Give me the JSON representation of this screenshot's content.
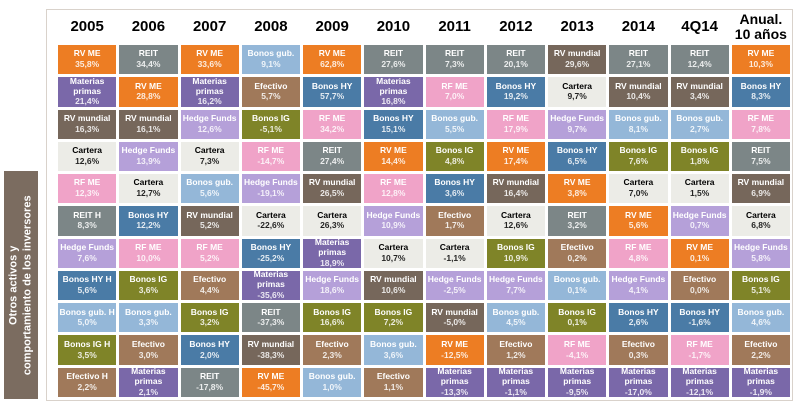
{
  "sidebar": {
    "label": "Otros activos y\ncomportamiento de los inversores",
    "bg": "#7b6c60"
  },
  "palette": {
    "RV ME": {
      "bg": "#ed7d23",
      "fg": "#ffffff"
    },
    "Materias primas": {
      "bg": "#7a68a9",
      "fg": "#ffffff"
    },
    "RV mundial": {
      "bg": "#76675b",
      "fg": "#ffffff"
    },
    "Cartera": {
      "bg": "#ececе7",
      "fg": "#000000"
    },
    "RF ME": {
      "bg": "#f0a3c8",
      "fg": "#ffffff"
    },
    "REIT": {
      "bg": "#7c8687",
      "fg": "#ffffff"
    },
    "Hedge Funds": {
      "bg": "#b5a0d9",
      "fg": "#ffffff"
    },
    "Bonos HY": {
      "bg": "#4a7ba6",
      "fg": "#ffffff"
    },
    "Bonos gub.": {
      "bg": "#94b7d8",
      "fg": "#ffffff"
    },
    "Bonos IG": {
      "bg": "#7f8428",
      "fg": "#ffffff"
    },
    "Efectivo": {
      "bg": "#a0795a",
      "fg": "#ffffff"
    }
  },
  "chart_data": {
    "type": "table",
    "layout": "return-quilt; columns sorted descending by annual return; values use Spanish decimal commas",
    "columns": [
      {
        "header": "2005",
        "cells": [
          {
            "label": "RV ME",
            "asset": "RV ME",
            "value": "35,8%"
          },
          {
            "label": "Materias\nprimas",
            "asset": "Materias primas",
            "value": "21,4%"
          },
          {
            "label": "RV mundial",
            "asset": "RV mundial",
            "value": "16,3%"
          },
          {
            "label": "Cartera",
            "asset": "Cartera",
            "value": "12,6%"
          },
          {
            "label": "RF ME",
            "asset": "RF ME",
            "value": "12,3%"
          },
          {
            "label": "REIT H",
            "asset": "REIT",
            "value": "8,3%"
          },
          {
            "label": "Hedge Funds",
            "asset": "Hedge Funds",
            "value": "7,6%"
          },
          {
            "label": "Bonos HY H",
            "asset": "Bonos HY",
            "value": "5,6%"
          },
          {
            "label": "Bonos gub. H",
            "asset": "Bonos gub.",
            "value": "5,0%"
          },
          {
            "label": "Bonos IG H",
            "asset": "Bonos IG",
            "value": "3,5%"
          },
          {
            "label": "Efectivo H",
            "asset": "Efectivo",
            "value": "2,2%"
          }
        ]
      },
      {
        "header": "2006",
        "cells": [
          {
            "label": "REIT",
            "asset": "REIT",
            "value": "34,4%"
          },
          {
            "label": "RV ME",
            "asset": "RV ME",
            "value": "28,8%"
          },
          {
            "label": "RV mundial",
            "asset": "RV mundial",
            "value": "16,1%"
          },
          {
            "label": "Hedge Funds",
            "asset": "Hedge Funds",
            "value": "13,9%"
          },
          {
            "label": "Cartera",
            "asset": "Cartera",
            "value": "12,7%"
          },
          {
            "label": "Bonos HY",
            "asset": "Bonos HY",
            "value": "12,2%"
          },
          {
            "label": "RF ME",
            "asset": "RF ME",
            "value": "10,0%"
          },
          {
            "label": "Bonos IG",
            "asset": "Bonos IG",
            "value": "3,6%"
          },
          {
            "label": "Bonos gub.",
            "asset": "Bonos gub.",
            "value": "3,3%"
          },
          {
            "label": "Efectivo",
            "asset": "Efectivo",
            "value": "3,0%"
          },
          {
            "label": "Materias\nprimas",
            "asset": "Materias primas",
            "value": "2,1%"
          }
        ]
      },
      {
        "header": "2007",
        "cells": [
          {
            "label": "RV ME",
            "asset": "RV ME",
            "value": "33,6%"
          },
          {
            "label": "Materias\nprimas",
            "asset": "Materias primas",
            "value": "16,2%"
          },
          {
            "label": "Hedge Funds",
            "asset": "Hedge Funds",
            "value": "12,6%"
          },
          {
            "label": "Cartera",
            "asset": "Cartera",
            "value": "7,3%"
          },
          {
            "label": "Bonos gub.",
            "asset": "Bonos gub.",
            "value": "5,6%"
          },
          {
            "label": "RV mundial",
            "asset": "RV mundial",
            "value": "5,2%"
          },
          {
            "label": "RF ME",
            "asset": "RF ME",
            "value": "5,2%"
          },
          {
            "label": "Efectivo",
            "asset": "Efectivo",
            "value": "4,4%"
          },
          {
            "label": "Bonos IG",
            "asset": "Bonos IG",
            "value": "3,2%"
          },
          {
            "label": "Bonos HY",
            "asset": "Bonos HY",
            "value": "2,0%"
          },
          {
            "label": "REIT",
            "asset": "REIT",
            "value": "-17,8%"
          }
        ]
      },
      {
        "header": "2008",
        "cells": [
          {
            "label": "Bonos gub.",
            "asset": "Bonos gub.",
            "value": "9,1%"
          },
          {
            "label": "Efectivo",
            "asset": "Efectivo",
            "value": "5,7%"
          },
          {
            "label": "Bonos IG",
            "asset": "Bonos IG",
            "value": "-5,1%"
          },
          {
            "label": "RF ME",
            "asset": "RF ME",
            "value": "-14,7%"
          },
          {
            "label": "Hedge Funds",
            "asset": "Hedge Funds",
            "value": "-19,1%"
          },
          {
            "label": "Cartera",
            "asset": "Cartera",
            "value": "-22,6%"
          },
          {
            "label": "Bonos HY",
            "asset": "Bonos HY",
            "value": "-25,2%"
          },
          {
            "label": "Materias\nprimas",
            "asset": "Materias primas",
            "value": "-35,6%"
          },
          {
            "label": "REIT",
            "asset": "REIT",
            "value": "-37,3%"
          },
          {
            "label": "RV mundial",
            "asset": "RV mundial",
            "value": "-38,3%"
          },
          {
            "label": "RV ME",
            "asset": "RV ME",
            "value": "-45,7%"
          }
        ]
      },
      {
        "header": "2009",
        "cells": [
          {
            "label": "RV ME",
            "asset": "RV ME",
            "value": "62,8%"
          },
          {
            "label": "Bonos HY",
            "asset": "Bonos HY",
            "value": "57,7%"
          },
          {
            "label": "RF ME",
            "asset": "RF ME",
            "value": "34,2%"
          },
          {
            "label": "REIT",
            "asset": "REIT",
            "value": "27,4%"
          },
          {
            "label": "RV mundial",
            "asset": "RV mundial",
            "value": "26,5%"
          },
          {
            "label": "Cartera",
            "asset": "Cartera",
            "value": "26,3%"
          },
          {
            "label": "Materias\nprimas",
            "asset": "Materias primas",
            "value": "18,9%"
          },
          {
            "label": "Hedge Funds",
            "asset": "Hedge Funds",
            "value": "18,6%"
          },
          {
            "label": "Bonos IG",
            "asset": "Bonos IG",
            "value": "16,6%"
          },
          {
            "label": "Efectivo",
            "asset": "Efectivo",
            "value": "2,3%"
          },
          {
            "label": "Bonos gub.",
            "asset": "Bonos gub.",
            "value": "1,0%"
          }
        ]
      },
      {
        "header": "2010",
        "cells": [
          {
            "label": "REIT",
            "asset": "REIT",
            "value": "27,6%"
          },
          {
            "label": "Materias\nprimas",
            "asset": "Materias primas",
            "value": "16,8%"
          },
          {
            "label": "Bonos HY",
            "asset": "Bonos HY",
            "value": "15,1%"
          },
          {
            "label": "RV ME",
            "asset": "RV ME",
            "value": "14,4%"
          },
          {
            "label": "RF ME",
            "asset": "RF ME",
            "value": "12,8%"
          },
          {
            "label": "Hedge Funds",
            "asset": "Hedge Funds",
            "value": "10,9%"
          },
          {
            "label": "Cartera",
            "asset": "Cartera",
            "value": "10,7%"
          },
          {
            "label": "RV mundial",
            "asset": "RV mundial",
            "value": "10,6%"
          },
          {
            "label": "Bonos IG",
            "asset": "Bonos IG",
            "value": "7,2%"
          },
          {
            "label": "Bonos gub.",
            "asset": "Bonos gub.",
            "value": "3,6%"
          },
          {
            "label": "Efectivo",
            "asset": "Efectivo",
            "value": "1,1%"
          }
        ]
      },
      {
        "header": "2011",
        "cells": [
          {
            "label": "REIT",
            "asset": "REIT",
            "value": "7,3%"
          },
          {
            "label": "RF ME",
            "asset": "RF ME",
            "value": "7,0%"
          },
          {
            "label": "Bonos gub.",
            "asset": "Bonos gub.",
            "value": "5,5%"
          },
          {
            "label": "Bonos IG",
            "asset": "Bonos IG",
            "value": "4,8%"
          },
          {
            "label": "Bonos HY",
            "asset": "Bonos HY",
            "value": "3,6%"
          },
          {
            "label": "Efectivo",
            "asset": "Efectivo",
            "value": "1,7%"
          },
          {
            "label": "Cartera",
            "asset": "Cartera",
            "value": "-1,1%"
          },
          {
            "label": "Hedge Funds",
            "asset": "Hedge Funds",
            "value": "-2,5%"
          },
          {
            "label": "RV mundial",
            "asset": "RV mundial",
            "value": "-5,0%"
          },
          {
            "label": "RV ME",
            "asset": "RV ME",
            "value": "-12,5%"
          },
          {
            "label": "Materias\nprimas",
            "asset": "Materias primas",
            "value": "-13,3%"
          }
        ]
      },
      {
        "header": "2012",
        "cells": [
          {
            "label": "REIT",
            "asset": "REIT",
            "value": "20,1%"
          },
          {
            "label": "Bonos HY",
            "asset": "Bonos HY",
            "value": "19,2%"
          },
          {
            "label": "RF ME",
            "asset": "RF ME",
            "value": "17,9%"
          },
          {
            "label": "RV ME",
            "asset": "RV ME",
            "value": "17,4%"
          },
          {
            "label": "RV mundial",
            "asset": "RV mundial",
            "value": "16,4%"
          },
          {
            "label": "Cartera",
            "asset": "Cartera",
            "value": "12,6%"
          },
          {
            "label": "Bonos IG",
            "asset": "Bonos IG",
            "value": "10,9%"
          },
          {
            "label": "Hedge Funds",
            "asset": "Hedge Funds",
            "value": "7,7%"
          },
          {
            "label": "Bonos gub.",
            "asset": "Bonos gub.",
            "value": "4,5%"
          },
          {
            "label": "Efectivo",
            "asset": "Efectivo",
            "value": "1,2%"
          },
          {
            "label": "Materias\nprimas",
            "asset": "Materias primas",
            "value": "-1,1%"
          }
        ]
      },
      {
        "header": "2013",
        "cells": [
          {
            "label": "RV mundial",
            "asset": "RV mundial",
            "value": "29,6%"
          },
          {
            "label": "Cartera",
            "asset": "Cartera",
            "value": "9,7%"
          },
          {
            "label": "Hedge Funds",
            "asset": "Hedge Funds",
            "value": "9,7%"
          },
          {
            "label": "Bonos HY",
            "asset": "Bonos HY",
            "value": "6,5%"
          },
          {
            "label": "RV ME",
            "asset": "RV ME",
            "value": "3,8%"
          },
          {
            "label": "REIT",
            "asset": "REIT",
            "value": "3,2%"
          },
          {
            "label": "Efectivo",
            "asset": "Efectivo",
            "value": "0,2%"
          },
          {
            "label": "Bonos gub.",
            "asset": "Bonos gub.",
            "value": "0,1%"
          },
          {
            "label": "Bonos IG",
            "asset": "Bonos IG",
            "value": "0,1%"
          },
          {
            "label": "RF ME",
            "asset": "RF ME",
            "value": "-4,1%"
          },
          {
            "label": "Materias\nprimas",
            "asset": "Materias primas",
            "value": "-9,5%"
          }
        ]
      },
      {
        "header": "2014",
        "cells": [
          {
            "label": "REIT",
            "asset": "REIT",
            "value": "27,1%"
          },
          {
            "label": "RV mundial",
            "asset": "RV mundial",
            "value": "10,4%"
          },
          {
            "label": "Bonos gub.",
            "asset": "Bonos gub.",
            "value": "8,1%"
          },
          {
            "label": "Bonos IG",
            "asset": "Bonos IG",
            "value": "7,6%"
          },
          {
            "label": "Cartera",
            "asset": "Cartera",
            "value": "7,0%"
          },
          {
            "label": "RV ME",
            "asset": "RV ME",
            "value": "5,6%"
          },
          {
            "label": "RF ME",
            "asset": "RF ME",
            "value": "4,8%"
          },
          {
            "label": "Hedge Funds",
            "asset": "Hedge Funds",
            "value": "4,1%"
          },
          {
            "label": "Bonos HY",
            "asset": "Bonos HY",
            "value": "2,6%"
          },
          {
            "label": "Efectivo",
            "asset": "Efectivo",
            "value": "0,3%"
          },
          {
            "label": "Materias\nprimas",
            "asset": "Materias primas",
            "value": "-17,0%"
          }
        ]
      },
      {
        "header": "4Q14",
        "cells": [
          {
            "label": "REIT",
            "asset": "REIT",
            "value": "12,4%"
          },
          {
            "label": "RV mundial",
            "asset": "RV mundial",
            "value": "3,4%"
          },
          {
            "label": "Bonos gub.",
            "asset": "Bonos gub.",
            "value": "2,7%"
          },
          {
            "label": "Bonos IG",
            "asset": "Bonos IG",
            "value": "1,8%"
          },
          {
            "label": "Cartera",
            "asset": "Cartera",
            "value": "1,5%"
          },
          {
            "label": "Hedge Funds",
            "asset": "Hedge Funds",
            "value": "0,7%"
          },
          {
            "label": "RV ME",
            "asset": "RV ME",
            "value": "0,1%"
          },
          {
            "label": "Efectivo",
            "asset": "Efectivo",
            "value": "0,0%"
          },
          {
            "label": "Bonos HY",
            "asset": "Bonos HY",
            "value": "-1,6%"
          },
          {
            "label": "RF ME",
            "asset": "RF ME",
            "value": "-1,7%"
          },
          {
            "label": "Materias\nprimas",
            "asset": "Materias primas",
            "value": "-12,1%"
          }
        ]
      },
      {
        "header": "Anual.\n10 años",
        "cells": [
          {
            "label": "RV ME",
            "asset": "RV ME",
            "value": "10,3%"
          },
          {
            "label": "Bonos HY",
            "asset": "Bonos HY",
            "value": "8,3%"
          },
          {
            "label": "RF ME",
            "asset": "RF ME",
            "value": "7,8%"
          },
          {
            "label": "REIT",
            "asset": "REIT",
            "value": "7,5%"
          },
          {
            "label": "RV mundial",
            "asset": "RV mundial",
            "value": "6,9%"
          },
          {
            "label": "Cartera",
            "asset": "Cartera",
            "value": "6,8%"
          },
          {
            "label": "Hedge Funds",
            "asset": "Hedge Funds",
            "value": "5,8%"
          },
          {
            "label": "Bonos IG",
            "asset": "Bonos IG",
            "value": "5,1%"
          },
          {
            "label": "Bonos gub.",
            "asset": "Bonos gub.",
            "value": "4,6%"
          },
          {
            "label": "Efectivo",
            "asset": "Efectivo",
            "value": "2,2%"
          },
          {
            "label": "Materias\nprimas",
            "asset": "Materias primas",
            "value": "-1,9%"
          }
        ]
      }
    ]
  }
}
